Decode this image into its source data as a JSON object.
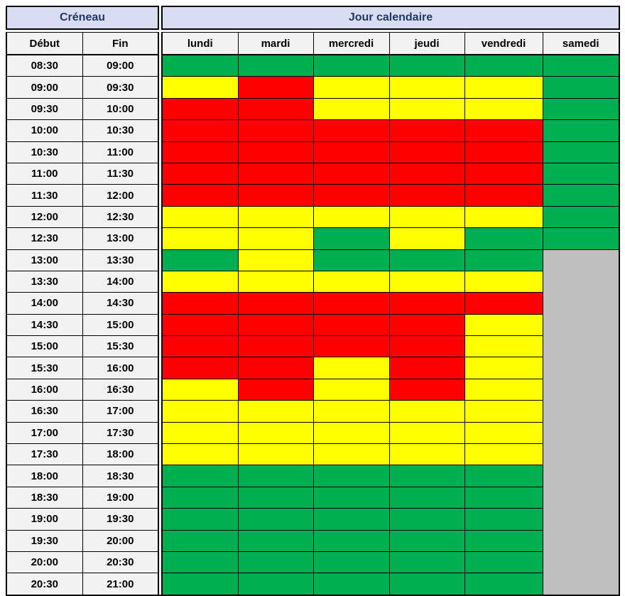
{
  "colors": {
    "green": "#00B050",
    "yellow": "#FFFF00",
    "red": "#FF0000",
    "gray": "#BFBFBF",
    "header_bg": "#DADCF4",
    "header_text": "#1F3864",
    "subheader_bg": "#F2F2F2",
    "border": "#000000"
  },
  "header": {
    "creneau": "Créneau",
    "jour_calendaire": "Jour calendaire"
  },
  "columns": {
    "debut": "Début",
    "fin": "Fin",
    "days": [
      "lundi",
      "mardi",
      "mercredi",
      "jeudi",
      "vendredi",
      "samedi"
    ]
  },
  "chart_data": {
    "type": "heatmap",
    "title": "",
    "x_categories": [
      "lundi",
      "mardi",
      "mercredi",
      "jeudi",
      "vendredi",
      "samedi"
    ],
    "value_legend": [
      "green",
      "yellow",
      "red",
      "gray"
    ],
    "rows": [
      {
        "start": "08:30",
        "end": "09:00",
        "days": [
          "green",
          "green",
          "green",
          "green",
          "green",
          "green"
        ]
      },
      {
        "start": "09:00",
        "end": "09:30",
        "days": [
          "yellow",
          "red",
          "yellow",
          "yellow",
          "yellow",
          "green"
        ]
      },
      {
        "start": "09:30",
        "end": "10:00",
        "days": [
          "red",
          "red",
          "yellow",
          "yellow",
          "yellow",
          "green"
        ]
      },
      {
        "start": "10:00",
        "end": "10:30",
        "days": [
          "red",
          "red",
          "red",
          "red",
          "red",
          "green"
        ]
      },
      {
        "start": "10:30",
        "end": "11:00",
        "days": [
          "red",
          "red",
          "red",
          "red",
          "red",
          "green"
        ]
      },
      {
        "start": "11:00",
        "end": "11:30",
        "days": [
          "red",
          "red",
          "red",
          "red",
          "red",
          "green"
        ]
      },
      {
        "start": "11:30",
        "end": "12:00",
        "days": [
          "red",
          "red",
          "red",
          "red",
          "red",
          "green"
        ]
      },
      {
        "start": "12:00",
        "end": "12:30",
        "days": [
          "yellow",
          "yellow",
          "yellow",
          "yellow",
          "yellow",
          "green"
        ]
      },
      {
        "start": "12:30",
        "end": "13:00",
        "days": [
          "yellow",
          "yellow",
          "green",
          "yellow",
          "green",
          "green"
        ]
      },
      {
        "start": "13:00",
        "end": "13:30",
        "days": [
          "green",
          "yellow",
          "green",
          "green",
          "green",
          "gray"
        ]
      },
      {
        "start": "13:30",
        "end": "14:00",
        "days": [
          "yellow",
          "yellow",
          "yellow",
          "yellow",
          "yellow",
          "gray"
        ]
      },
      {
        "start": "14:00",
        "end": "14:30",
        "days": [
          "red",
          "red",
          "red",
          "red",
          "red",
          "gray"
        ]
      },
      {
        "start": "14:30",
        "end": "15:00",
        "days": [
          "red",
          "red",
          "red",
          "red",
          "yellow",
          "gray"
        ]
      },
      {
        "start": "15:00",
        "end": "15:30",
        "days": [
          "red",
          "red",
          "red",
          "red",
          "yellow",
          "gray"
        ]
      },
      {
        "start": "15:30",
        "end": "16:00",
        "days": [
          "red",
          "red",
          "yellow",
          "red",
          "yellow",
          "gray"
        ]
      },
      {
        "start": "16:00",
        "end": "16:30",
        "days": [
          "yellow",
          "red",
          "yellow",
          "red",
          "yellow",
          "gray"
        ]
      },
      {
        "start": "16:30",
        "end": "17:00",
        "days": [
          "yellow",
          "yellow",
          "yellow",
          "yellow",
          "yellow",
          "gray"
        ]
      },
      {
        "start": "17:00",
        "end": "17:30",
        "days": [
          "yellow",
          "yellow",
          "yellow",
          "yellow",
          "yellow",
          "gray"
        ]
      },
      {
        "start": "17:30",
        "end": "18:00",
        "days": [
          "yellow",
          "yellow",
          "yellow",
          "yellow",
          "yellow",
          "gray"
        ]
      },
      {
        "start": "18:00",
        "end": "18:30",
        "days": [
          "green",
          "green",
          "green",
          "green",
          "green",
          "gray"
        ]
      },
      {
        "start": "18:30",
        "end": "19:00",
        "days": [
          "green",
          "green",
          "green",
          "green",
          "green",
          "gray"
        ]
      },
      {
        "start": "19:00",
        "end": "19:30",
        "days": [
          "green",
          "green",
          "green",
          "green",
          "green",
          "gray"
        ]
      },
      {
        "start": "19:30",
        "end": "20:00",
        "days": [
          "green",
          "green",
          "green",
          "green",
          "green",
          "gray"
        ]
      },
      {
        "start": "20:00",
        "end": "20:30",
        "days": [
          "green",
          "green",
          "green",
          "green",
          "green",
          "gray"
        ]
      },
      {
        "start": "20:30",
        "end": "21:00",
        "days": [
          "green",
          "green",
          "green",
          "green",
          "green",
          "gray"
        ]
      }
    ]
  }
}
